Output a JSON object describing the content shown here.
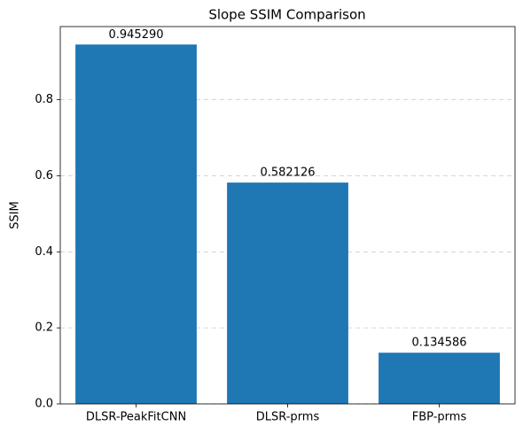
{
  "chart_data": {
    "type": "bar",
    "title": "Slope SSIM Comparison",
    "y_label": "SSIM",
    "categories": [
      "DLSR-PeakFitCNN",
      "DLSR-prms",
      "FBP-prms"
    ],
    "values": [
      0.94529,
      0.582126,
      0.134586
    ],
    "value_labels": [
      "0.945290",
      "0.582126",
      "0.134586"
    ],
    "color": "#1f77b4",
    "ylim": [
      0,
      0.9925
    ],
    "yticks": [
      {
        "value": 0,
        "label": "0.0"
      },
      {
        "value": 0.2,
        "label": "0.2"
      },
      {
        "value": 0.4,
        "label": "0.4"
      },
      {
        "value": 0.6,
        "label": "0.6"
      },
      {
        "value": 0.8,
        "label": "0.8"
      }
    ],
    "grid": true
  }
}
